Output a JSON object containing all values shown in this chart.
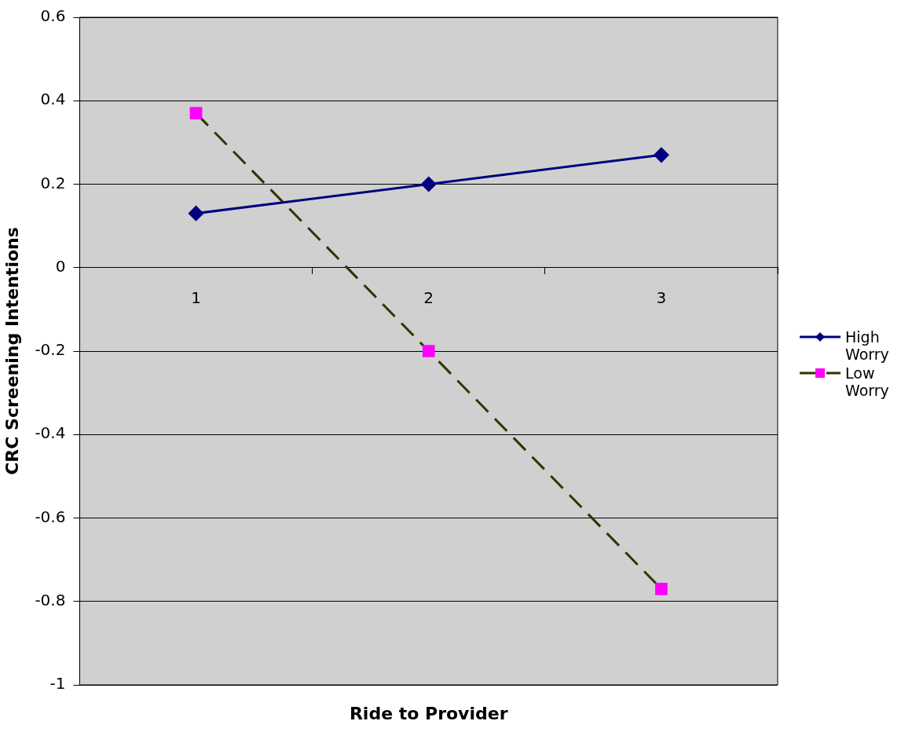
{
  "chart_data": {
    "type": "line",
    "xlabel": "Ride to Provider",
    "ylabel": "CRC Screening Intentions",
    "categories": [
      "1",
      "2",
      "3"
    ],
    "series": [
      {
        "name": "High Worry",
        "color": "#000080",
        "values": [
          0.13,
          0.2,
          0.27
        ],
        "marker": "diamond",
        "line_style": "solid"
      },
      {
        "name": "Low Worry",
        "color": "#333300",
        "colors": [
          "#ff00ff",
          "#ff00ff",
          "#ff00ff"
        ],
        "values": [
          0.37,
          -0.2,
          -0.77
        ],
        "marker": "square",
        "line_style": "dashed"
      }
    ],
    "ylim": [
      -1,
      0.6
    ],
    "yticks": [
      -1,
      -0.8,
      -0.6,
      -0.4,
      -0.2,
      0,
      0.2,
      0.4,
      0.6
    ],
    "grid": "y",
    "legend": "right"
  }
}
